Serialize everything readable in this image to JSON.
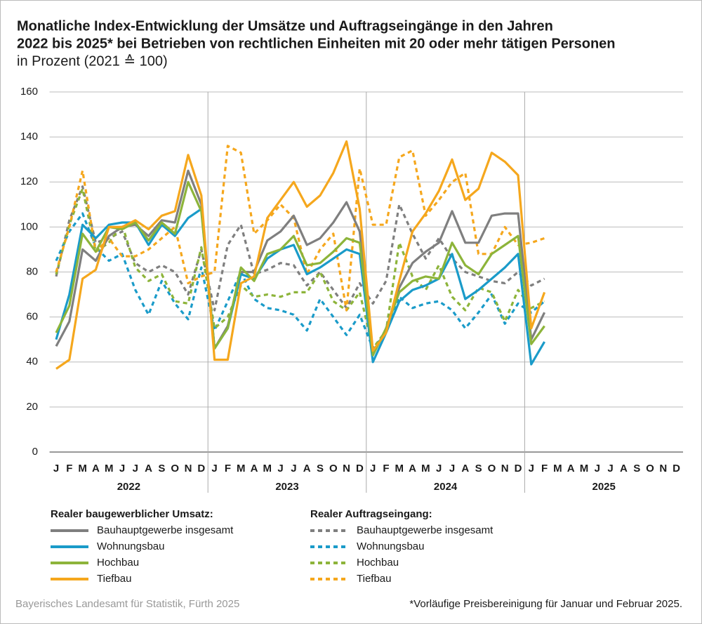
{
  "chart_data": {
    "type": "line",
    "title_lines": [
      "Monatliche Index-Entwicklung der Umsätze und Auftragseingänge in den Jahren",
      "2022 bis 2025* bei Betrieben von rechtlichen Einheiten mit 20 oder mehr tätigen Personen"
    ],
    "subtitle": "in Prozent (2021 ≙ 100)",
    "categories": [
      "J",
      "F",
      "M",
      "A",
      "M",
      "J",
      "J",
      "A",
      "S",
      "O",
      "N",
      "D",
      "J",
      "F",
      "M",
      "A",
      "M",
      "J",
      "J",
      "A",
      "S",
      "O",
      "N",
      "D",
      "J",
      "F",
      "M",
      "A",
      "M",
      "J",
      "J",
      "A",
      "S",
      "O",
      "N",
      "D",
      "J",
      "F",
      "M",
      "A",
      "M",
      "J",
      "J",
      "A",
      "S",
      "O",
      "N",
      "D"
    ],
    "years": [
      "2022",
      "2023",
      "2024",
      "2025"
    ],
    "ylim": [
      0,
      160
    ],
    "yticks": [
      0,
      20,
      40,
      60,
      80,
      100,
      120,
      140,
      160
    ],
    "grid": true,
    "legend_groups": [
      "Realer baugewerblicher Umsatz:",
      "Realer Auftragseingang:"
    ],
    "series": [
      {
        "name": "Bauhauptgewerbe insgesamt",
        "color": "#7f7f7f",
        "line_style": "solid",
        "values": [
          47,
          58,
          90,
          85,
          96,
          100,
          101,
          96,
          103,
          102,
          125,
          110,
          46,
          56,
          80,
          80,
          94,
          98,
          105,
          92,
          95,
          102,
          111,
          98,
          43,
          55,
          73,
          84,
          89,
          93,
          107,
          93,
          93,
          105,
          106,
          106,
          50,
          62,
          null,
          null,
          null,
          null,
          null,
          null,
          null,
          null,
          null,
          null
        ]
      },
      {
        "name": "Wohnungsbau",
        "color": "#1a9bc9",
        "line_style": "solid",
        "values": [
          50,
          70,
          101,
          95,
          101,
          102,
          102,
          92,
          101,
          96,
          104,
          108,
          46,
          55,
          79,
          77,
          86,
          90,
          92,
          79,
          82,
          86,
          90,
          88,
          40,
          53,
          67,
          72,
          74,
          77,
          88,
          68,
          72,
          77,
          82,
          88,
          39,
          49,
          null,
          null,
          null,
          null,
          null,
          null,
          null,
          null,
          null,
          null
        ]
      },
      {
        "name": "Hochbau",
        "color": "#8db43a",
        "line_style": "solid",
        "values": [
          53,
          65,
          97,
          89,
          100,
          99,
          102,
          94,
          102,
          97,
          120,
          107,
          46,
          55,
          82,
          76,
          88,
          90,
          96,
          83,
          84,
          89,
          95,
          93,
          43,
          55,
          71,
          76,
          78,
          77,
          93,
          83,
          79,
          88,
          92,
          96,
          48,
          56,
          null,
          null,
          null,
          null,
          null,
          null,
          null,
          null,
          null,
          null
        ]
      },
      {
        "name": "Tiefbau",
        "color": "#f5a71d",
        "line_style": "solid",
        "values": [
          37,
          41,
          77,
          81,
          100,
          100,
          103,
          99,
          105,
          107,
          132,
          114,
          41,
          41,
          75,
          78,
          104,
          112,
          120,
          109,
          114,
          124,
          138,
          108,
          45,
          53,
          76,
          98,
          106,
          116,
          130,
          112,
          117,
          133,
          129,
          123,
          55,
          71,
          null,
          null,
          null,
          null,
          null,
          null,
          null,
          null,
          null,
          null
        ]
      },
      {
        "name": "Bauhauptgewerbe insgesamt",
        "color": "#7f7f7f",
        "line_style": "dashed",
        "values": [
          78,
          103,
          118,
          93,
          95,
          98,
          84,
          80,
          83,
          80,
          70,
          90,
          63,
          92,
          101,
          79,
          81,
          84,
          83,
          74,
          80,
          72,
          64,
          75,
          66,
          76,
          110,
          97,
          86,
          95,
          86,
          80,
          78,
          76,
          75,
          80,
          74,
          77,
          null,
          null,
          null,
          null,
          null,
          null,
          null,
          null,
          null,
          null
        ]
      },
      {
        "name": "Wohnungsbau",
        "color": "#1a9bc9",
        "line_style": "dashed",
        "values": [
          85,
          98,
          106,
          91,
          85,
          88,
          72,
          61,
          76,
          66,
          59,
          82,
          54,
          67,
          80,
          68,
          64,
          63,
          61,
          54,
          68,
          60,
          52,
          61,
          46,
          53,
          69,
          64,
          66,
          67,
          63,
          55,
          62,
          70,
          57,
          66,
          62,
          67,
          null,
          null,
          null,
          null,
          null,
          null,
          null,
          null,
          null,
          null
        ]
      },
      {
        "name": "Hochbau",
        "color": "#8db43a",
        "line_style": "dashed",
        "values": [
          79,
          101,
          117,
          89,
          93,
          101,
          82,
          76,
          79,
          67,
          66,
          91,
          55,
          60,
          74,
          69,
          70,
          69,
          71,
          71,
          80,
          67,
          63,
          71,
          46,
          54,
          93,
          78,
          72,
          83,
          69,
          63,
          73,
          71,
          58,
          72,
          64,
          67,
          null,
          null,
          null,
          null,
          null,
          null,
          null,
          null,
          null,
          null
        ]
      },
      {
        "name": "Tiefbau",
        "color": "#f5a71d",
        "line_style": "dashed",
        "values": [
          80,
          100,
          125,
          89,
          95,
          87,
          87,
          90,
          95,
          100,
          75,
          78,
          80,
          136,
          133,
          97,
          103,
          110,
          104,
          79,
          90,
          97,
          63,
          126,
          101,
          101,
          131,
          134,
          105,
          112,
          120,
          124,
          88,
          88,
          100,
          92,
          93,
          95,
          null,
          null,
          null,
          null,
          null,
          null,
          null,
          null,
          null,
          null
        ]
      }
    ],
    "source": "Bayerisches Landesamt für Statistik, Fürth 2025",
    "footnote": "*Vorläufige Preisbereinigung für Januar und Februar 2025."
  }
}
